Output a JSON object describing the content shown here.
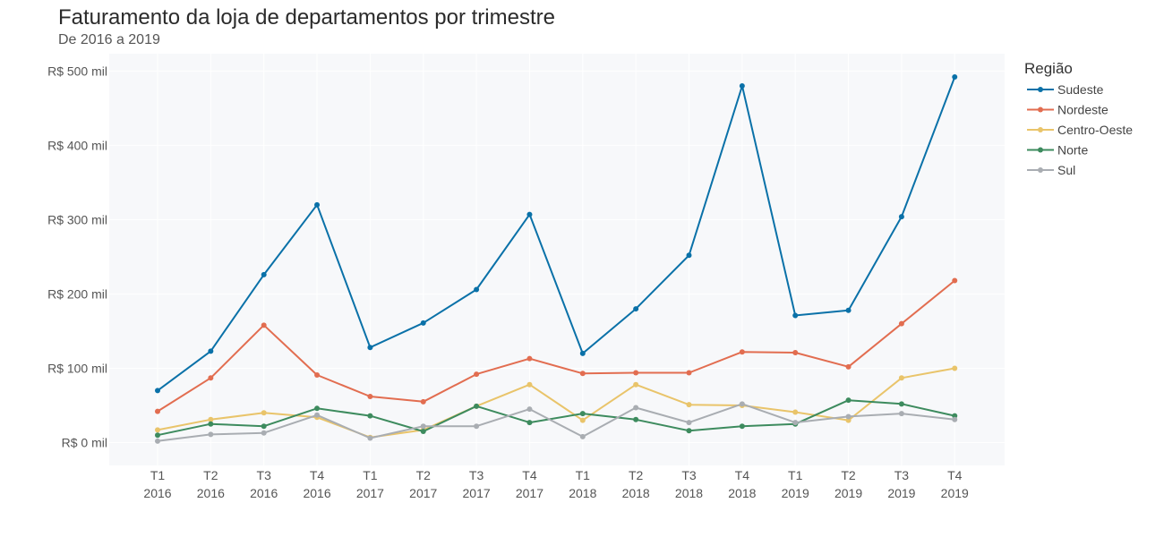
{
  "chart_data": {
    "type": "line",
    "title": "Faturamento da loja de departamentos por trimestre",
    "subtitle": "De 2016 a 2019",
    "xlabel": "",
    "ylabel": "",
    "ylim": [
      -30,
      530
    ],
    "y_ticks": [
      {
        "value": 0,
        "label": "R$ 0 mil"
      },
      {
        "value": 100,
        "label": "R$ 100 mil"
      },
      {
        "value": 200,
        "label": "R$ 200 mil"
      },
      {
        "value": 300,
        "label": "R$ 300 mil"
      },
      {
        "value": 400,
        "label": "R$ 400 mil"
      },
      {
        "value": 500,
        "label": "R$ 500 mil"
      }
    ],
    "categories": [
      {
        "quarter": "T1",
        "year": "2016"
      },
      {
        "quarter": "T2",
        "year": "2016"
      },
      {
        "quarter": "T3",
        "year": "2016"
      },
      {
        "quarter": "T4",
        "year": "2016"
      },
      {
        "quarter": "T1",
        "year": "2017"
      },
      {
        "quarter": "T2",
        "year": "2017"
      },
      {
        "quarter": "T3",
        "year": "2017"
      },
      {
        "quarter": "T4",
        "year": "2017"
      },
      {
        "quarter": "T1",
        "year": "2018"
      },
      {
        "quarter": "T2",
        "year": "2018"
      },
      {
        "quarter": "T3",
        "year": "2018"
      },
      {
        "quarter": "T4",
        "year": "2018"
      },
      {
        "quarter": "T1",
        "year": "2019"
      },
      {
        "quarter": "T2",
        "year": "2019"
      },
      {
        "quarter": "T3",
        "year": "2019"
      },
      {
        "quarter": "T4",
        "year": "2019"
      }
    ],
    "legend_title": "Região",
    "legend_position": "right",
    "grid": true,
    "background": "#f7f8fa",
    "series": [
      {
        "name": "Sudeste",
        "color": "#0a71a8",
        "values": [
          70,
          123,
          226,
          320,
          128,
          161,
          206,
          307,
          120,
          180,
          252,
          480,
          171,
          178,
          304,
          492
        ]
      },
      {
        "name": "Nordeste",
        "color": "#e26d50",
        "values": [
          42,
          87,
          158,
          91,
          62,
          55,
          92,
          113,
          93,
          94,
          94,
          122,
          121,
          102,
          160,
          218
        ]
      },
      {
        "name": "Centro-Oeste",
        "color": "#e9c46a",
        "values": [
          17,
          31,
          40,
          34,
          7,
          17,
          49,
          78,
          30,
          78,
          51,
          50,
          41,
          30,
          87,
          100
        ]
      },
      {
        "name": "Norte",
        "color": "#3d8b5e",
        "values": [
          10,
          25,
          22,
          46,
          36,
          15,
          49,
          27,
          39,
          31,
          16,
          22,
          25,
          57,
          52,
          36
        ]
      },
      {
        "name": "Sul",
        "color": "#a9adb2",
        "values": [
          2,
          11,
          13,
          37,
          6,
          22,
          22,
          45,
          8,
          47,
          27,
          52,
          27,
          35,
          39,
          31
        ]
      }
    ]
  }
}
